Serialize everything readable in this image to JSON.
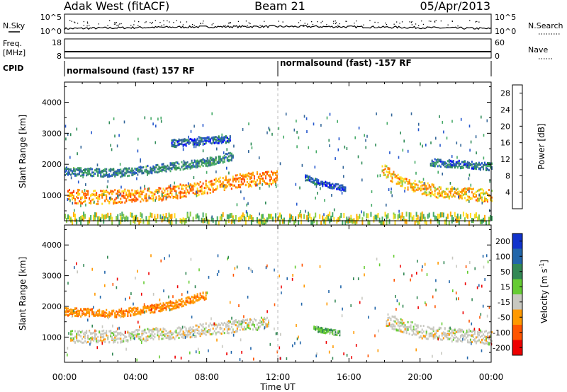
{
  "header": {
    "station": "Adak West (fitACF)",
    "beam": "Beam 21",
    "date": "05/Apr/2013"
  },
  "param_panels": {
    "nsky_label": "N.Sky",
    "nsky_ticks": [
      "10^5",
      "10^0"
    ],
    "nsearch_label": "N.Search",
    "nsearch_ticks": [
      "10^5",
      "10^0"
    ],
    "freq_label": "Freq.",
    "freq_unit": "[MHz]",
    "freq_ticks": [
      "18",
      "8"
    ],
    "nave_label": "Nave",
    "nave_ticks": [
      "60",
      "0"
    ],
    "cpid_label": "CPID",
    "cpid_segments": [
      {
        "text": "normalsound (fast) 157 RF",
        "start_hour": 0
      },
      {
        "text": "normalsound (fast) -157 RF",
        "start_hour": 12
      }
    ]
  },
  "chart_data": [
    {
      "type": "heatmap",
      "parameter": "Power",
      "ylabel": "Slant Range [km]",
      "xlabel": "Time UT",
      "x_ticks": [
        "00:00",
        "04:00",
        "08:00",
        "12:00",
        "16:00",
        "20:00",
        "00:00"
      ],
      "x_range_hours": [
        0,
        24
      ],
      "y_ticks": [
        1000,
        2000,
        3000,
        4000
      ],
      "y_range_km": [
        180,
        4650
      ],
      "colorbar": {
        "label": "Power [dB]",
        "ticks": [
          "4",
          "8",
          "12",
          "16",
          "20",
          "24",
          "28"
        ],
        "range": [
          0,
          30
        ],
        "colors": [
          "#0000ff",
          "#2255cc",
          "#336699",
          "#2e8b57",
          "#44aa66",
          "#88cc44",
          "#ffdd22",
          "#ffaa00",
          "#ff7700",
          "#ff4400",
          "#ff0000"
        ]
      },
      "bands": [
        {
          "name": "main",
          "points": [
            [
              0.1,
              1000
            ],
            [
              2,
              970
            ],
            [
              5,
              1050
            ],
            [
              7.5,
              1250
            ],
            [
              9.5,
              1480
            ],
            [
              11.5,
              1600
            ],
            [
              12,
              1620
            ]
          ],
          "width_km": 220,
          "value": 22
        },
        {
          "name": "upper",
          "points": [
            [
              0,
              1800
            ],
            [
              3,
              1750
            ],
            [
              6,
              1950
            ],
            [
              8,
              2100
            ],
            [
              9.5,
              2300
            ]
          ],
          "width_km": 130,
          "value": 9
        },
        {
          "name": "high",
          "points": [
            [
              6,
              2700
            ],
            [
              9.3,
              2850
            ]
          ],
          "width_km": 120,
          "value": 6
        },
        {
          "name": "arc",
          "points": [
            [
              13.5,
              1600
            ],
            [
              14.5,
              1400
            ],
            [
              15.8,
              1250
            ]
          ],
          "width_km": 90,
          "value": 5
        },
        {
          "name": "morning_lower",
          "points": [
            [
              17.8,
              1900
            ],
            [
              19,
              1400
            ],
            [
              21,
              1150
            ],
            [
              24,
              1000
            ]
          ],
          "width_km": 200,
          "value": 20
        },
        {
          "name": "morning_upper",
          "points": [
            [
              20.5,
              2100
            ],
            [
              24,
              1950
            ]
          ],
          "width_km": 120,
          "value": 7
        },
        {
          "name": "ground",
          "points": [
            [
              0,
              300
            ],
            [
              24,
              300
            ]
          ],
          "width_km": 180,
          "value": 16
        }
      ]
    },
    {
      "type": "heatmap",
      "parameter": "Velocity",
      "ylabel": "Slant Range [km]",
      "xlabel": "Time UT",
      "x_ticks": [
        "00:00",
        "04:00",
        "08:00",
        "12:00",
        "16:00",
        "20:00",
        "00:00"
      ],
      "x_range_hours": [
        0,
        24
      ],
      "y_ticks": [
        1000,
        2000,
        3000,
        4000
      ],
      "y_range_km": [
        180,
        4650
      ],
      "colorbar": {
        "label": "Velocity [m s^-1]",
        "ticks": [
          "200",
          "100",
          "50",
          "15",
          "-15",
          "-50",
          "-100",
          "-200"
        ],
        "colors": [
          "#1133cc",
          "#2266aa",
          "#338855",
          "#66cc33",
          "#c8c8c0",
          "#ff9900",
          "#ff5500",
          "#ee0000"
        ]
      },
      "bands": [
        {
          "name": "main",
          "points": [
            [
              0.3,
              1050
            ],
            [
              3,
              1050
            ],
            [
              6,
              1150
            ],
            [
              9,
              1350
            ],
            [
              11.5,
              1500
            ]
          ],
          "width_km": 200,
          "value": 0
        },
        {
          "name": "upper",
          "points": [
            [
              0,
              1850
            ],
            [
              3,
              1800
            ],
            [
              6,
              2050
            ],
            [
              8,
              2400
            ]
          ],
          "width_km": 130,
          "value": -40
        },
        {
          "name": "evening",
          "points": [
            [
              18,
              1600
            ],
            [
              20,
              1200
            ],
            [
              24,
              1000
            ]
          ],
          "width_km": 220,
          "value": 0
        },
        {
          "name": "arc",
          "points": [
            [
              14,
              1300
            ],
            [
              15.5,
              1150
            ]
          ],
          "width_km": 80,
          "value": 30
        }
      ]
    }
  ],
  "axis_labels": {
    "time": "Time UT",
    "slant_range_main": "Slant Range ",
    "slant_range_unit": "[km]",
    "power_label": "Power ",
    "power_unit": "[dB]",
    "velocity_label": "Velocity ",
    "velocity_unit_open": "[m s",
    "velocity_unit_exp": "-1",
    "velocity_unit_close": "]"
  }
}
